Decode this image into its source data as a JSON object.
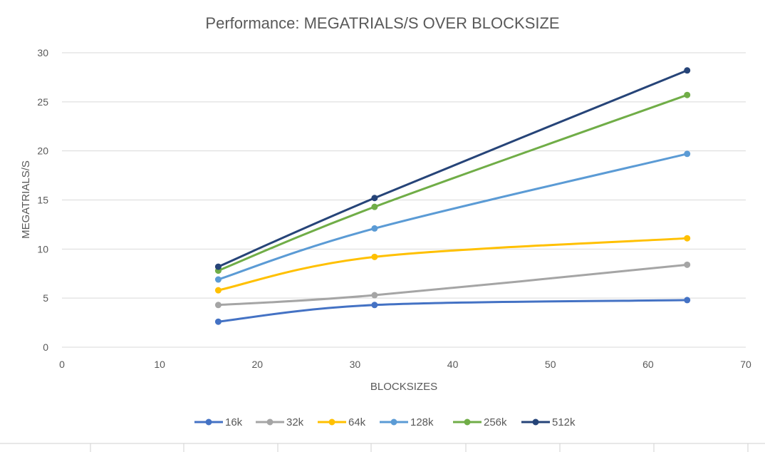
{
  "chart_data": {
    "type": "line",
    "title": "Performance: MEGATRIALS/S  OVER BLOCKSIZE",
    "xlabel": "BLOCKSIZES",
    "ylabel": "MEGATRIALS/S",
    "xlim": [
      0,
      70
    ],
    "ylim": [
      0,
      30
    ],
    "xticks": [
      0,
      10,
      20,
      30,
      40,
      50,
      60,
      70
    ],
    "yticks": [
      0,
      5,
      10,
      15,
      20,
      25,
      30
    ],
    "grid": "horizontal",
    "legend": "bottom",
    "smooth": true,
    "x": [
      16,
      32,
      64
    ],
    "series": [
      {
        "name": "16k",
        "color": "#4472c4",
        "values": [
          2.6,
          4.3,
          4.8
        ]
      },
      {
        "name": "32k",
        "color": "#a5a5a5",
        "values": [
          4.3,
          5.3,
          8.4
        ]
      },
      {
        "name": "64k",
        "color": "#ffc000",
        "values": [
          5.8,
          9.2,
          11.1
        ]
      },
      {
        "name": "128k",
        "color": "#5b9bd5",
        "values": [
          6.9,
          12.1,
          19.7
        ]
      },
      {
        "name": "256k",
        "color": "#70ad47",
        "values": [
          7.8,
          14.3,
          25.7
        ]
      },
      {
        "name": "512k",
        "color": "#264478",
        "values": [
          8.2,
          15.2,
          28.2
        ]
      }
    ]
  }
}
